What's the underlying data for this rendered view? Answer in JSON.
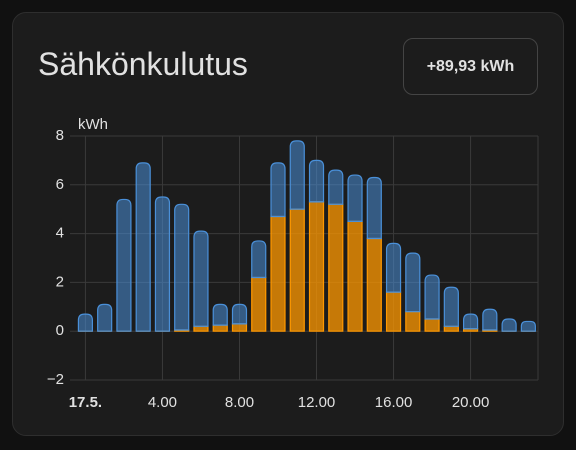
{
  "title": "Sähkönkulutus",
  "badge": "+89,93 kWh",
  "chart_data": {
    "type": "bar",
    "stacked": true,
    "y_label": "kWh",
    "x": [
      0,
      1,
      2,
      3,
      4,
      5,
      6,
      7,
      8,
      9,
      10,
      11,
      12,
      13,
      14,
      15,
      16,
      17,
      18,
      19,
      20,
      21,
      22,
      23
    ],
    "series": [
      {
        "color": "#ff9800",
        "values": [
          0,
          0,
          0,
          0,
          0,
          0.05,
          0.2,
          0.25,
          0.3,
          2.2,
          4.7,
          5.0,
          5.3,
          5.2,
          4.5,
          3.8,
          1.6,
          0.8,
          0.5,
          0.2,
          0.1,
          0.05,
          0,
          0
        ]
      },
      {
        "color": "#4a90d9",
        "values": [
          0.7,
          1.1,
          5.4,
          6.9,
          5.5,
          5.15,
          3.9,
          0.85,
          0.8,
          1.5,
          2.2,
          2.8,
          1.7,
          1.4,
          1.9,
          2.5,
          2.0,
          2.4,
          1.8,
          1.6,
          0.6,
          0.85,
          0.5,
          0.4
        ]
      }
    ],
    "xlim": [
      -0.8,
      23.5
    ],
    "xticks": [
      {
        "value": 0,
        "label": "17.5."
      },
      {
        "value": 4,
        "label": "4.00"
      },
      {
        "value": 8,
        "label": "8.00"
      },
      {
        "value": 12,
        "label": "12.00"
      },
      {
        "value": 16,
        "label": "16.00"
      },
      {
        "value": 20,
        "label": "20.00"
      }
    ],
    "ylim": [
      -2,
      8
    ],
    "yticks": [
      {
        "value": -2,
        "label": "−2"
      },
      0,
      2,
      4,
      6,
      8
    ],
    "grid": true
  }
}
